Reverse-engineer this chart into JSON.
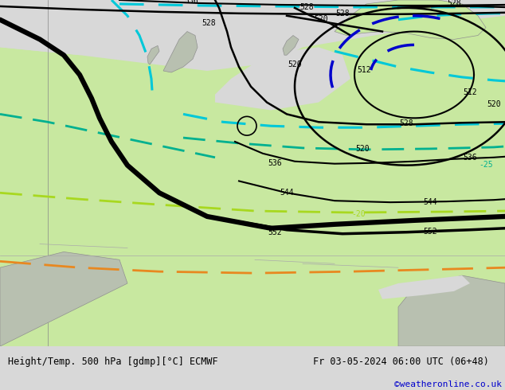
{
  "title_left": "Height/Temp. 500 hPa [gdmp][°C] ECMWF",
  "title_right": "Fr 03-05-2024 06:00 UTC (06+48)",
  "credit": "©weatheronline.co.uk",
  "map_bg_light": "#d8d8d8",
  "land_green": "#c8e8a0",
  "land_gray": "#b8c0b0",
  "water_gray": "#c8c8c8",
  "footer_bg": "#d8d8d8",
  "footer_text": "#000000",
  "credit_color": "#0000cc",
  "black": "#000000",
  "cyan": "#00c8d8",
  "blue_dark": "#0000cc",
  "teal": "#00b090",
  "yellow_green": "#a8d820",
  "orange": "#e88820"
}
